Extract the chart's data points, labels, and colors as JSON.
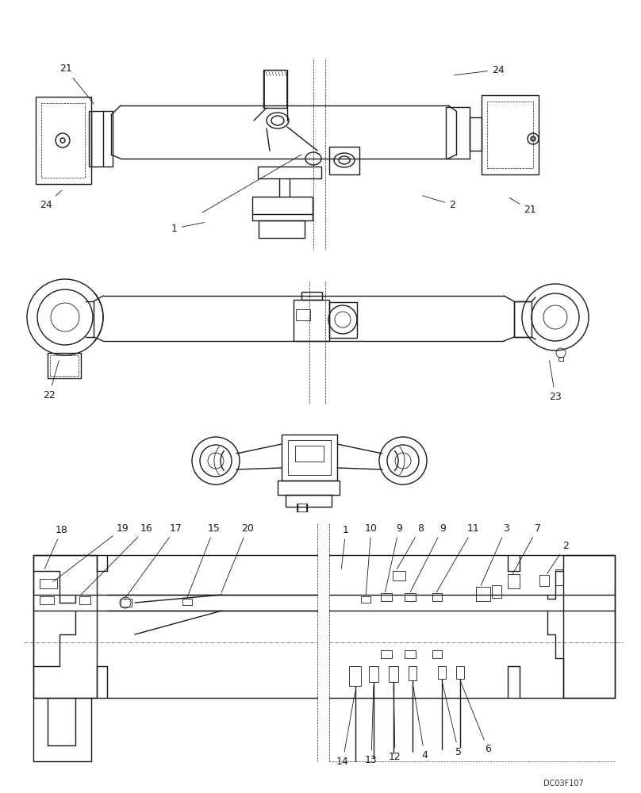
{
  "bg_color": "#ffffff",
  "lc": "#1a1a1a",
  "watermark": "DC03F107",
  "fs": 9,
  "fs_small": 7,
  "lw_main": 1.0,
  "lw_thin": 0.6,
  "lw_dash": 0.5
}
